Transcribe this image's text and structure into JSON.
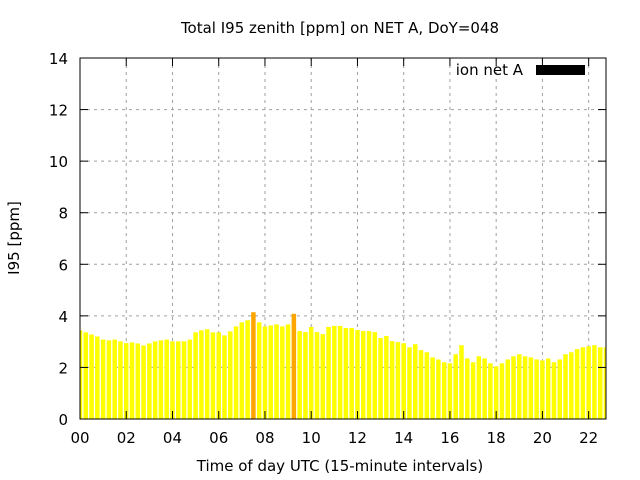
{
  "chart_data": {
    "type": "bar",
    "title": "Total I95 zenith [ppm] on NET A, DoY=048",
    "xlabel": "Time of day UTC (15-minute intervals)",
    "ylabel": "I95 [ppm]",
    "xlim": [
      0,
      22.75
    ],
    "ylim": [
      0,
      14
    ],
    "grid": true,
    "legend": {
      "label": "ion net A",
      "placement": "top-right",
      "color": "#000000"
    },
    "x_ticks": [
      0,
      2,
      4,
      6,
      8,
      10,
      12,
      14,
      16,
      18,
      20,
      22
    ],
    "x_tick_labels": [
      "00",
      "02",
      "04",
      "06",
      "08",
      "10",
      "12",
      "14",
      "16",
      "18",
      "20",
      "22"
    ],
    "y_ticks": [
      0,
      2,
      4,
      6,
      8,
      10,
      12,
      14
    ],
    "y_tick_labels": [
      "0",
      "2",
      "4",
      "6",
      "8",
      "10",
      "12",
      "14"
    ],
    "bar_interval_hours": 0.25,
    "bar_color": "#ffff00",
    "highlight_color": "#ffa500",
    "highlight_indices": [
      30,
      37
    ],
    "values": [
      3.44,
      3.36,
      3.28,
      3.2,
      3.08,
      3.05,
      3.08,
      3.01,
      2.94,
      2.97,
      2.93,
      2.85,
      2.93,
      3.01,
      3.05,
      3.08,
      3.01,
      3.01,
      3.01,
      3.08,
      3.36,
      3.44,
      3.48,
      3.36,
      3.36,
      3.24,
      3.4,
      3.59,
      3.75,
      3.83,
      4.14,
      3.75,
      3.59,
      3.63,
      3.67,
      3.59,
      3.67,
      4.08,
      3.41,
      3.37,
      3.57,
      3.37,
      3.29,
      3.57,
      3.61,
      3.61,
      3.53,
      3.53,
      3.45,
      3.41,
      3.41,
      3.37,
      3.14,
      3.22,
      3.02,
      2.98,
      2.94,
      2.78,
      2.9,
      2.67,
      2.59,
      2.39,
      2.31,
      2.2,
      2.16,
      2.51,
      2.86,
      2.35,
      2.2,
      2.43,
      2.35,
      2.16,
      2.04,
      2.16,
      2.31,
      2.43,
      2.51,
      2.43,
      2.39,
      2.31,
      2.27,
      2.35,
      2.2,
      2.31,
      2.51,
      2.59,
      2.71,
      2.78,
      2.82,
      2.86,
      2.78,
      2.78
    ]
  }
}
